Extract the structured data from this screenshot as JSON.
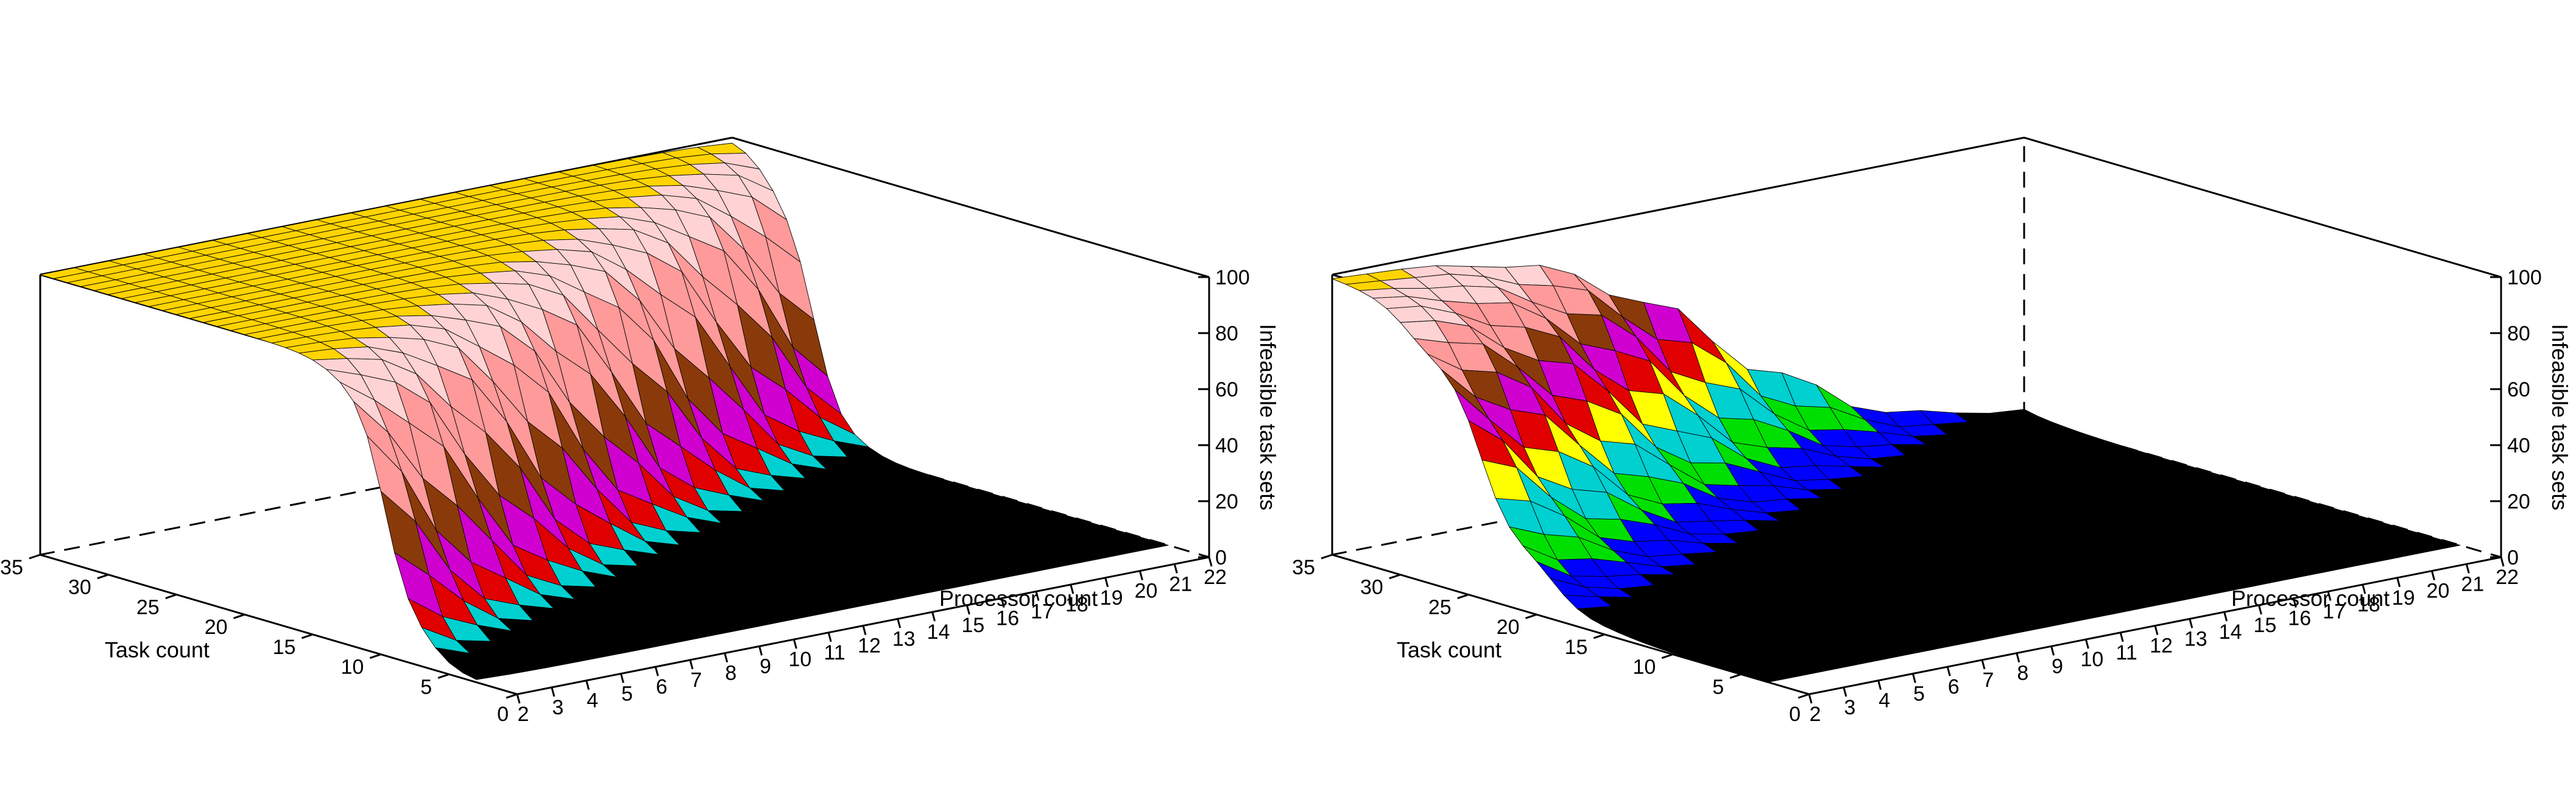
{
  "chart_data": [
    {
      "type": "surface3d",
      "title": "",
      "xlabel": "Processor count",
      "ylabel": "Task count",
      "zlabel": "Infeasible task sets",
      "x_ticks": [
        2,
        3,
        4,
        5,
        6,
        7,
        8,
        9,
        10,
        11,
        12,
        13,
        14,
        15,
        16,
        17,
        18,
        19,
        20,
        21,
        22
      ],
      "y_ticks": [
        0,
        5,
        10,
        15,
        20,
        25,
        30,
        35
      ],
      "y_tick_labels_shown": [
        5,
        10,
        15,
        20,
        25,
        30,
        35
      ],
      "z_ticks": [
        0,
        20,
        40,
        60,
        80,
        100
      ],
      "xlim": [
        2,
        22
      ],
      "ylim": [
        0,
        35
      ],
      "zlim": [
        0,
        100
      ],
      "surface": {
        "x": [
          2,
          22
        ],
        "y": [
          3,
          35
        ],
        "description_of_values": "percentage of infeasible task sets; 100 when task count is well above processor count, dropping to 0 when task count is low",
        "transition_offset": 7.5,
        "transition_slope": 1.0,
        "transition_width": 1.4
      },
      "colormap": [
        {
          "min": 0,
          "color": "#000000"
        },
        {
          "min": 6,
          "color": "#00d0d0"
        },
        {
          "min": 14,
          "color": "#e00000"
        },
        {
          "min": 24,
          "color": "#d000d0"
        },
        {
          "min": 36,
          "color": "#8a3a0a"
        },
        {
          "min": 52,
          "color": "#ff9a9a"
        },
        {
          "min": 78,
          "color": "#ffd3d3"
        },
        {
          "min": 96,
          "color": "#ffd400"
        }
      ]
    },
    {
      "type": "surface3d",
      "title": "",
      "xlabel": "Processor count",
      "ylabel": "Task count",
      "zlabel": "Infeasible task sets",
      "x_ticks": [
        2,
        3,
        4,
        5,
        6,
        7,
        8,
        9,
        10,
        11,
        12,
        13,
        14,
        15,
        16,
        17,
        18,
        19,
        20,
        21,
        22
      ],
      "y_ticks": [
        0,
        5,
        10,
        15,
        20,
        25,
        30,
        35
      ],
      "y_tick_labels_shown": [
        5,
        10,
        15,
        20,
        25,
        30,
        35
      ],
      "z_ticks": [
        0,
        20,
        40,
        60,
        80,
        100
      ],
      "xlim": [
        2,
        22
      ],
      "ylim": [
        0,
        35
      ],
      "zlim": [
        0,
        100
      ],
      "surface": {
        "x": [
          2,
          22
        ],
        "y": [
          3,
          35
        ],
        "description_of_values": "percentage of infeasible task sets; drops from 100 to 0 across a steep band where task count is about 2.5x processor count",
        "transition_offset": 22,
        "transition_slope": 1.0,
        "transition_width": 2.6
      },
      "colormap": [
        {
          "min": 0,
          "color": "#000000"
        },
        {
          "min": 5,
          "color": "#0000ff"
        },
        {
          "min": 14,
          "color": "#00e000"
        },
        {
          "min": 24,
          "color": "#00d0d0"
        },
        {
          "min": 34,
          "color": "#ffff00"
        },
        {
          "min": 44,
          "color": "#e00000"
        },
        {
          "min": 54,
          "color": "#d000d0"
        },
        {
          "min": 64,
          "color": "#8a3a0a"
        },
        {
          "min": 74,
          "color": "#ff9a9a"
        },
        {
          "min": 86,
          "color": "#ffd3d3"
        },
        {
          "min": 96,
          "color": "#ffd400"
        }
      ]
    }
  ]
}
